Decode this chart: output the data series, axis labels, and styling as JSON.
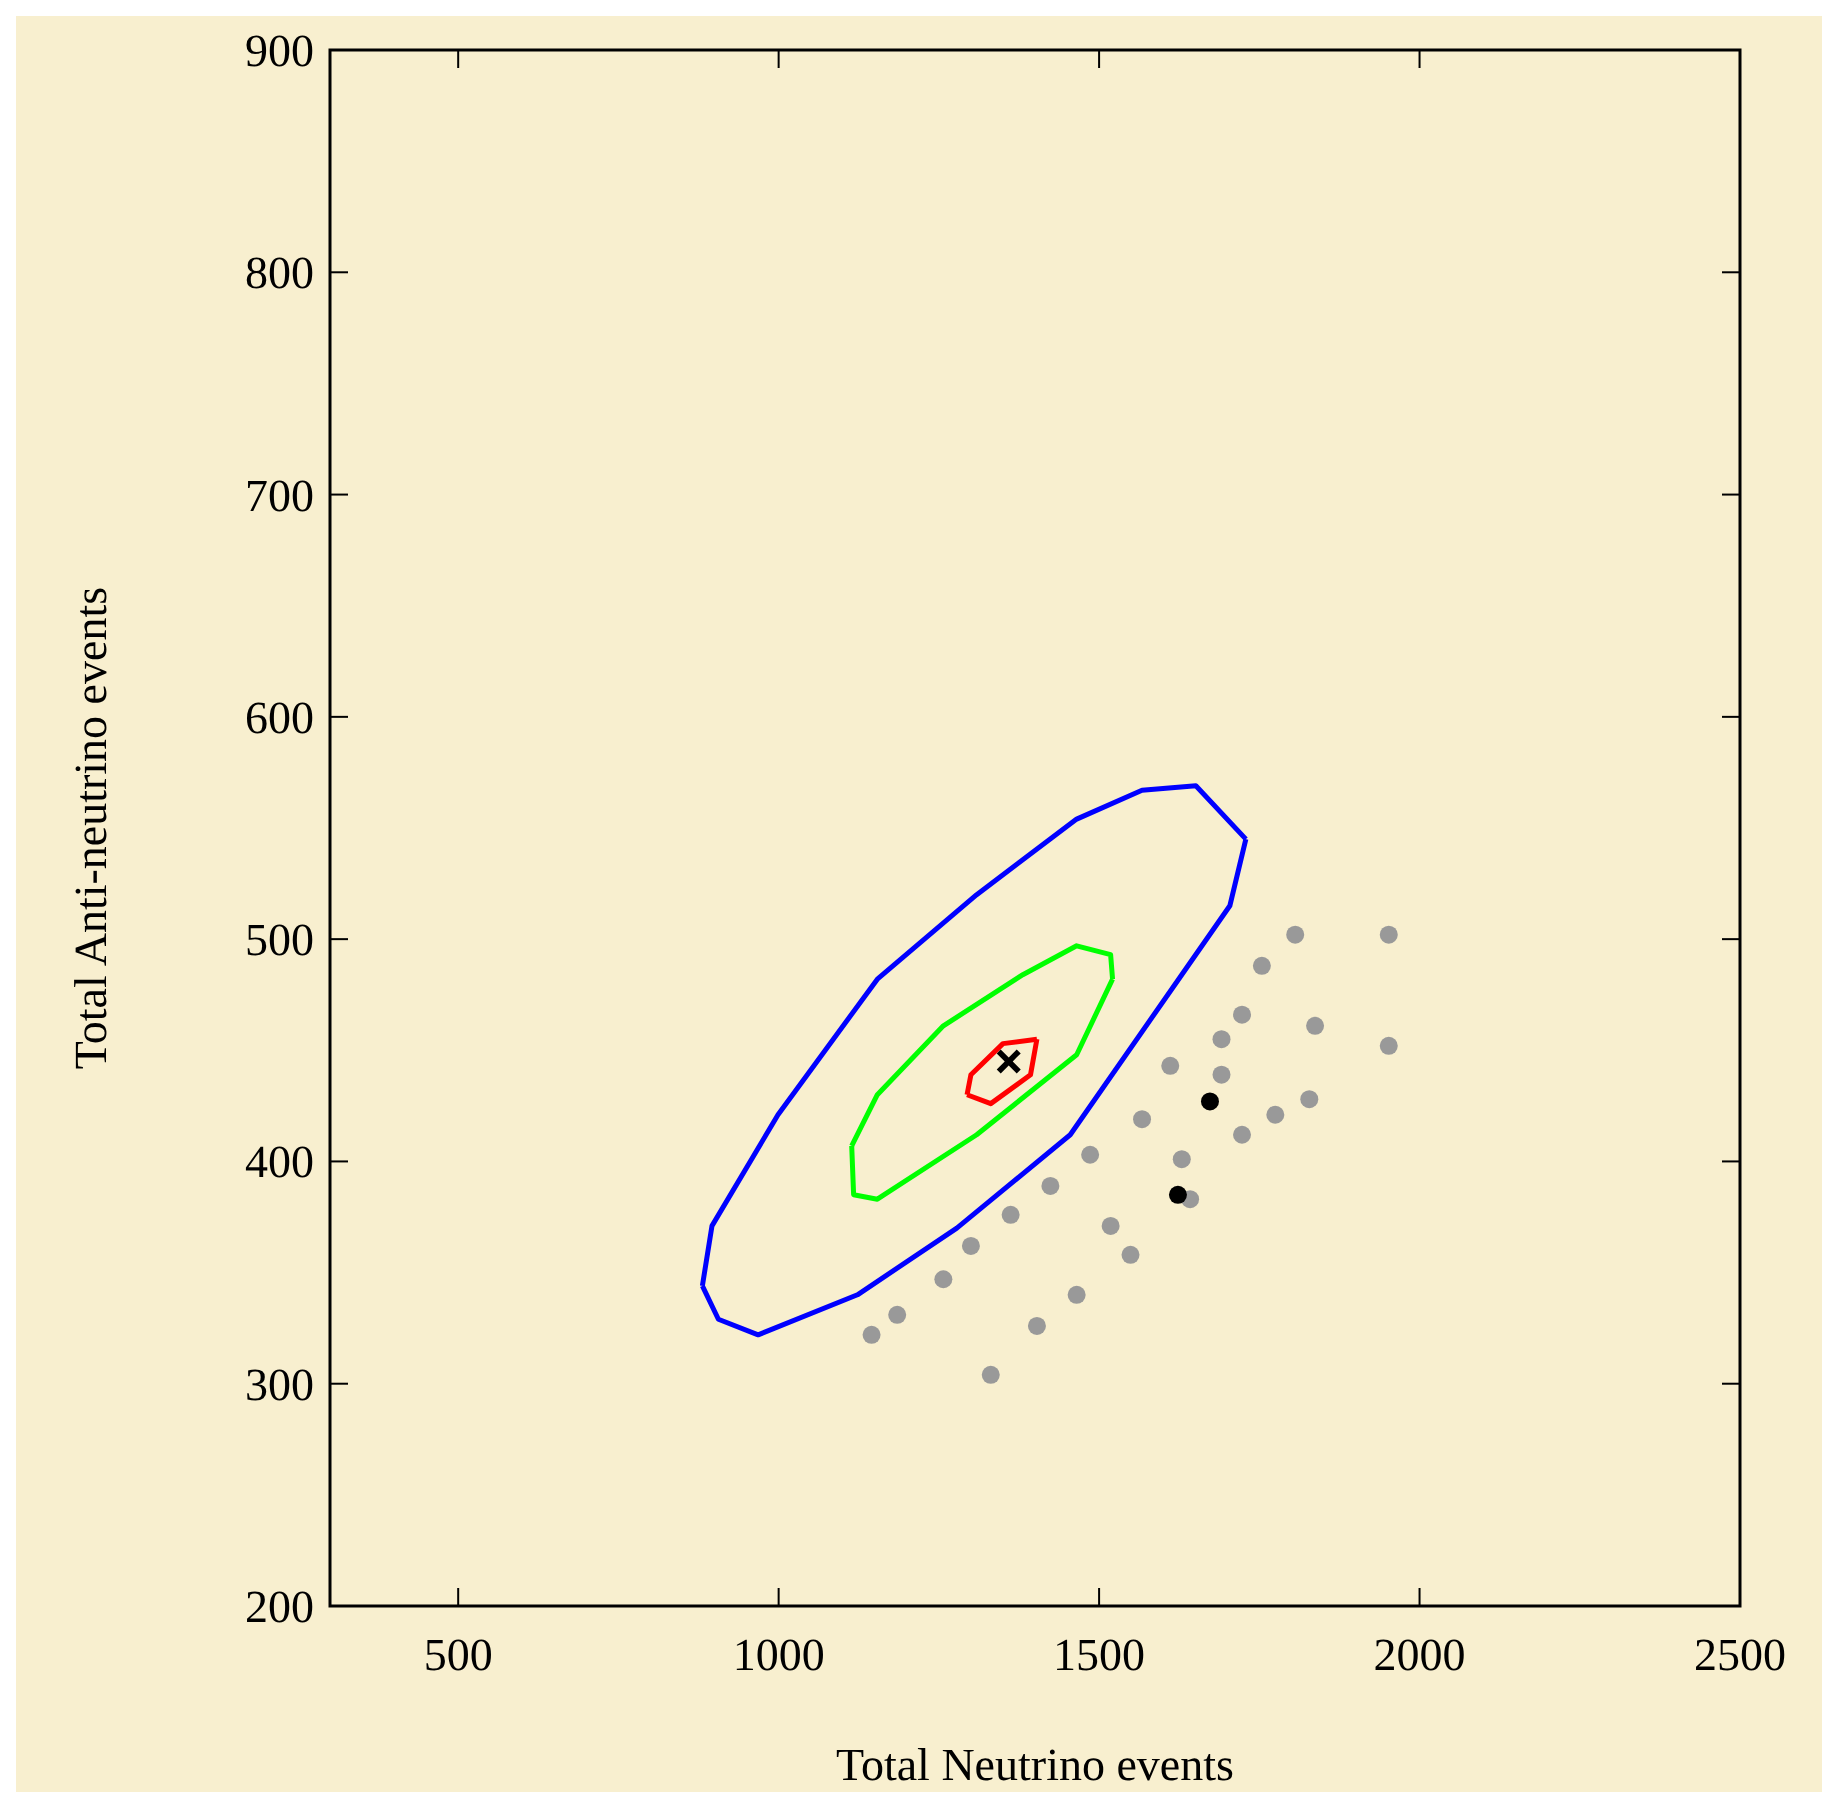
{
  "chart_data": {
    "type": "scatter",
    "xlabel": "Total Neutrino events",
    "ylabel": "Total Anti-neutrino events",
    "xlim": [
      300,
      2500
    ],
    "xticks": [
      500,
      1000,
      1500,
      2000,
      2500
    ],
    "ylim": [
      200,
      900
    ],
    "yticks": [
      200,
      300,
      400,
      500,
      600,
      700,
      800,
      900
    ],
    "grid": false,
    "series": [
      {
        "type": "scatter",
        "marker": "circle",
        "color": "#999999",
        "x": [
          1145,
          1331,
          1185,
          1403,
          1257,
          1465,
          1300,
          1549,
          1362,
          1486,
          1567,
          1629,
          1691,
          1828,
          1723,
          1837,
          1754,
          1952,
          1806,
          1952,
          1775,
          1723,
          1642,
          1518,
          1424,
          1611,
          1691
        ],
        "values": [
          322,
          304,
          331,
          326,
          347,
          340,
          362,
          358,
          376,
          403,
          419,
          401,
          439,
          428,
          466,
          461,
          488,
          502,
          502,
          452,
          421,
          412,
          383,
          371,
          389,
          443,
          455
        ]
      },
      {
        "type": "line",
        "marker": "none",
        "line_style": "solid",
        "color": "#0000ff",
        "x": [
          881,
          896,
          999,
          1154,
          1309,
          1465,
          1567,
          1651,
          1729
        ],
        "values": [
          344,
          371,
          421,
          482,
          520,
          554,
          567,
          569,
          545
        ]
      },
      {
        "type": "line",
        "marker": "none",
        "line_style": "solid",
        "color": "#0000ff",
        "x": [
          881,
          906,
          968,
          1123,
          1278,
          1455,
          1629,
          1704,
          1729
        ],
        "values": [
          344,
          329,
          322,
          340,
          370,
          412,
          484,
          515,
          545
        ]
      },
      {
        "type": "line",
        "marker": "none",
        "line_style": "solid",
        "color": "#00ff00",
        "x": [
          1114,
          1154,
          1257,
          1381,
          1465,
          1518,
          1521
        ],
        "values": [
          407,
          430,
          461,
          484,
          497,
          493,
          482
        ]
      },
      {
        "type": "line",
        "marker": "none",
        "line_style": "solid",
        "color": "#00ff00",
        "x": [
          1114,
          1117,
          1154,
          1309,
          1465,
          1521
        ],
        "values": [
          407,
          385,
          383,
          412,
          448,
          482
        ]
      },
      {
        "type": "line",
        "marker": "none",
        "line_style": "solid",
        "color": "#ff0000",
        "x": [
          1294,
          1300,
          1350,
          1403
        ],
        "values": [
          430,
          439,
          453,
          455
        ]
      },
      {
        "type": "line",
        "marker": "none",
        "line_style": "solid",
        "color": "#ff0000",
        "x": [
          1294,
          1331,
          1393,
          1403
        ],
        "values": [
          430,
          426,
          439,
          455
        ]
      },
      {
        "type": "scatter",
        "marker": "circle",
        "color": "#000000",
        "x": [
          1673,
          1623
        ],
        "values": [
          427,
          385
        ]
      },
      {
        "marker": "cross",
        "color": "#000000",
        "x": [
          1359
        ],
        "values": [
          445
        ]
      }
    ]
  }
}
